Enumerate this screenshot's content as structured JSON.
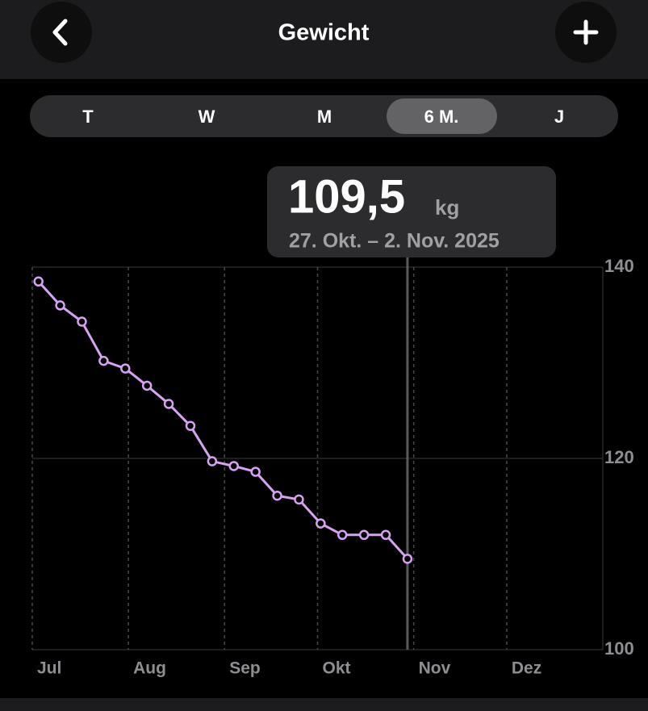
{
  "header": {
    "title": "Gewicht"
  },
  "segments": {
    "items": [
      "T",
      "W",
      "M",
      "6 M.",
      "J"
    ],
    "selected": "6 M."
  },
  "tooltip": {
    "value": "109,5",
    "unit": "kg",
    "range": "27. Okt. – 2. Nov. 2025"
  },
  "chart_data": {
    "type": "line",
    "x": [
      2,
      9,
      16,
      23,
      30,
      37,
      44,
      51,
      58,
      65,
      72,
      79,
      86,
      93,
      100,
      107,
      114,
      121
    ],
    "series": [
      {
        "color": "#d8a2f2",
        "values": [
          138.5,
          136.0,
          134.3,
          130.2,
          129.4,
          127.6,
          125.7,
          123.4,
          119.7,
          119.2,
          118.6,
          116.1,
          115.7,
          113.2,
          112.0,
          112.0,
          112.0,
          109.5
        ]
      }
    ],
    "xlim": [
      0,
      184
    ],
    "xticks": [
      {
        "value": 0,
        "label": "Jul"
      },
      {
        "value": 31,
        "label": "Aug"
      },
      {
        "value": 62,
        "label": "Sep"
      },
      {
        "value": 92,
        "label": "Okt"
      },
      {
        "value": 123,
        "label": "Nov"
      },
      {
        "value": 153,
        "label": "Dez"
      }
    ],
    "ylim": [
      100,
      140
    ],
    "yticks": [
      100,
      120,
      140
    ],
    "grid": true
  }
}
